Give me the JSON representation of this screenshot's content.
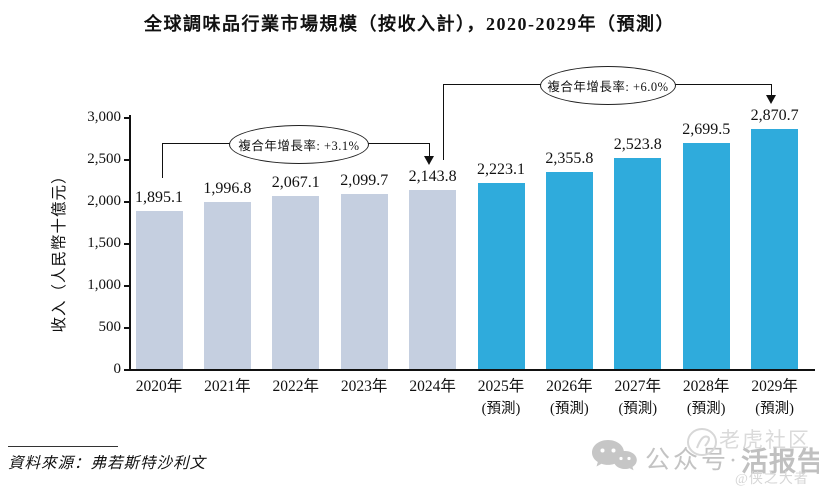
{
  "chart_data": {
    "type": "bar",
    "title": "全球調味品行業市場規模（按收入計），2020-2029年（預測）",
    "ylabel": "收入（人民幣十億元）",
    "xlabel": "",
    "ylim": [
      0,
      3000
    ],
    "ytick_values": [
      0,
      500,
      1000,
      1500,
      2000,
      2500,
      3000
    ],
    "ytick_labels": [
      "0",
      "500",
      "1,000",
      "1,500",
      "2,000",
      "2,500",
      "3,000"
    ],
    "categories": [
      "2020年",
      "2021年",
      "2022年",
      "2023年",
      "2024年",
      "2025年",
      "2026年",
      "2027年",
      "2028年",
      "2029年"
    ],
    "category_sublabels": [
      "",
      "",
      "",
      "",
      "",
      "(預測)",
      "(預測)",
      "(預測)",
      "(預測)",
      "(預測)"
    ],
    "values": [
      1895.1,
      1996.8,
      2067.1,
      2099.7,
      2143.8,
      2223.1,
      2355.8,
      2523.8,
      2699.5,
      2870.7
    ],
    "value_labels": [
      "1,895.1",
      "1,996.8",
      "2,067.1",
      "2,099.7",
      "2,143.8",
      "2,223.1",
      "2,355.8",
      "2,523.8",
      "2,699.5",
      "2,870.7"
    ],
    "bar_colors": [
      "#c5cfe0",
      "#c5cfe0",
      "#c5cfe0",
      "#c5cfe0",
      "#c5cfe0",
      "#2fabdc",
      "#2fabdc",
      "#2fabdc",
      "#2fabdc",
      "#2fabdc"
    ],
    "grid": false,
    "legend": "none",
    "annotations": [
      {
        "label": "複合年增長率: +3.1%"
      },
      {
        "label": "複合年增長率: +6.0%"
      }
    ]
  },
  "source": {
    "label": "資料來源：弗若斯特沙利文"
  },
  "watermark": {
    "wechat_label": "公众号",
    "separator": "·",
    "brand": "活报告",
    "overlay_top": "老虎社区",
    "overlay_bottom": "@侠之大者"
  },
  "colors": {
    "historical_bar": "#c5cfe0",
    "forecast_bar": "#2fabdc",
    "axis": "#111111",
    "watermark_gray": "#c6c6c6"
  }
}
